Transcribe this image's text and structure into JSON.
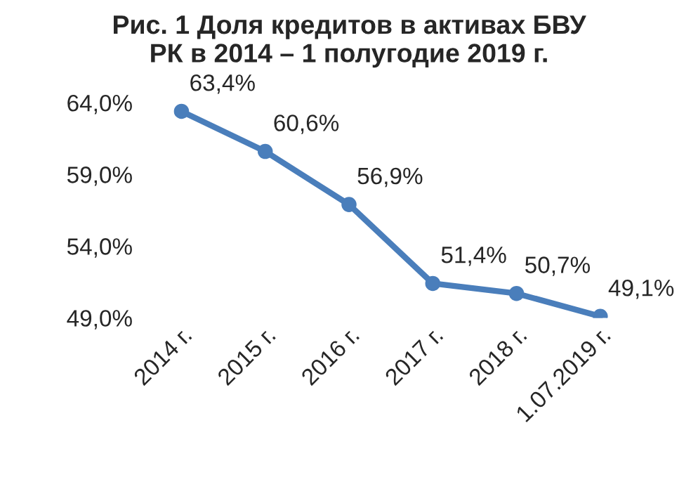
{
  "chart_data": {
    "type": "line",
    "title": "Рис. 1 Доля кредитов в активах БВУ\nРК в 2014 – 1 полугодие 2019 г.",
    "categories": [
      "2014 г.",
      "2015 г.",
      "2016 г.",
      "2017 г.",
      "2018 г.",
      "1.07.2019 г."
    ],
    "series": [
      {
        "color": "#4a7ebb",
        "values": [
          63.4,
          60.6,
          56.9,
          51.4,
          50.7,
          49.1
        ],
        "value_labels": [
          "63,4%",
          "60,6%",
          "56,9%",
          "51,4%",
          "50,7%",
          "49,1%"
        ]
      }
    ],
    "ylim": [
      49.0,
      64.0
    ],
    "yticks": [
      {
        "value": 49.0,
        "label": "49,0%"
      },
      {
        "value": 54.0,
        "label": "54,0%"
      },
      {
        "value": 59.0,
        "label": "59,0%"
      },
      {
        "value": 64.0,
        "label": "64,0%"
      }
    ],
    "grid": false,
    "legend": false,
    "marker": "circle",
    "line_style": "solid"
  }
}
